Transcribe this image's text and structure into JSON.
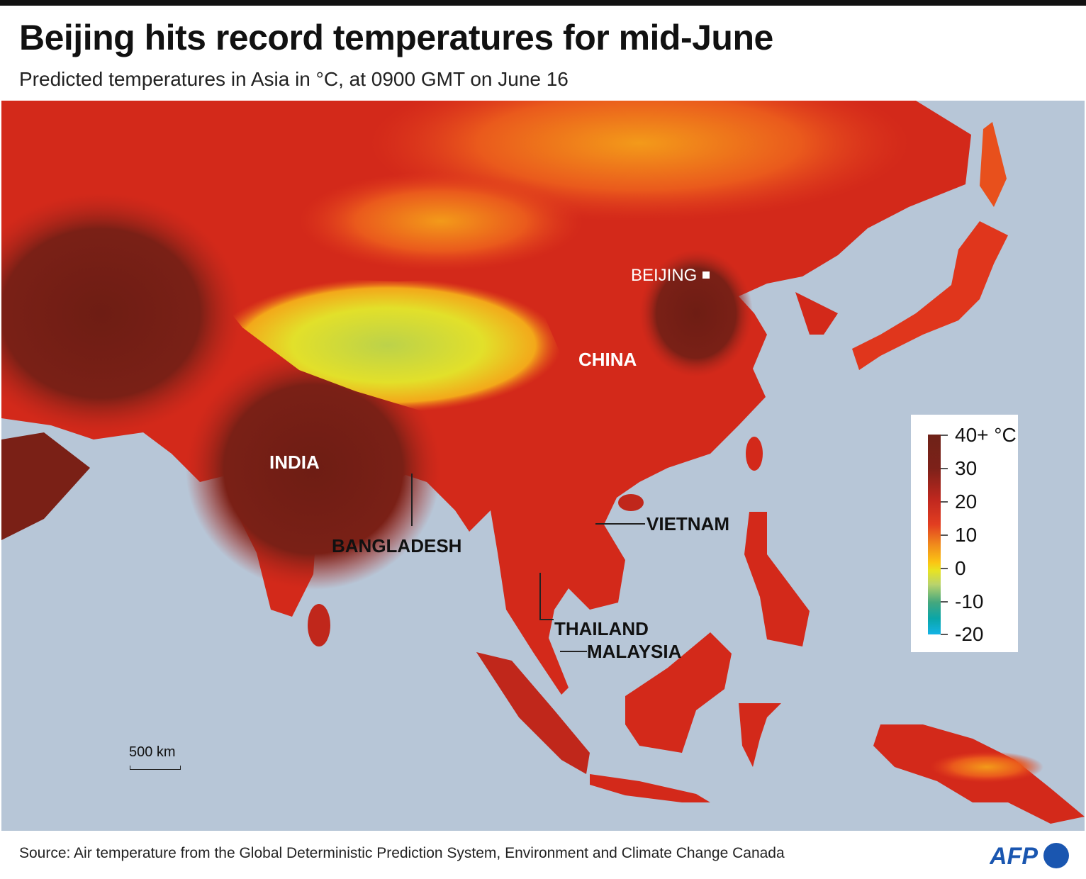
{
  "title": "Beijing hits record temperatures for mid-June",
  "subtitle": "Predicted temperatures in Asia in °C, at 0900 GMT on June 16",
  "map": {
    "sea_color": "#b7c6d7",
    "labels": {
      "beijing": "BEIJING",
      "china": "CHINA",
      "india": "INDIA",
      "bangladesh": "BANGLADESH",
      "vietnam": "VIETNAM",
      "thailand": "THAILAND",
      "malaysia": "MALAYSIA"
    },
    "scale": "500 km"
  },
  "legend": {
    "unit": "°C",
    "ticks": [
      "40+ °C",
      "30",
      "20",
      "10",
      "0",
      "-10",
      "-20"
    ],
    "colors": [
      "#6e2218",
      "#c1281f",
      "#e23e21",
      "#f08a1c",
      "#fbc514",
      "#e8e322",
      "#44a77e",
      "#14b3e6"
    ]
  },
  "footer": {
    "source": "Source: Air temperature from the Global Deterministic Prediction System, Environment and Climate Change Canada",
    "logo": "AFP",
    "logo_color": "#1a56b0"
  }
}
